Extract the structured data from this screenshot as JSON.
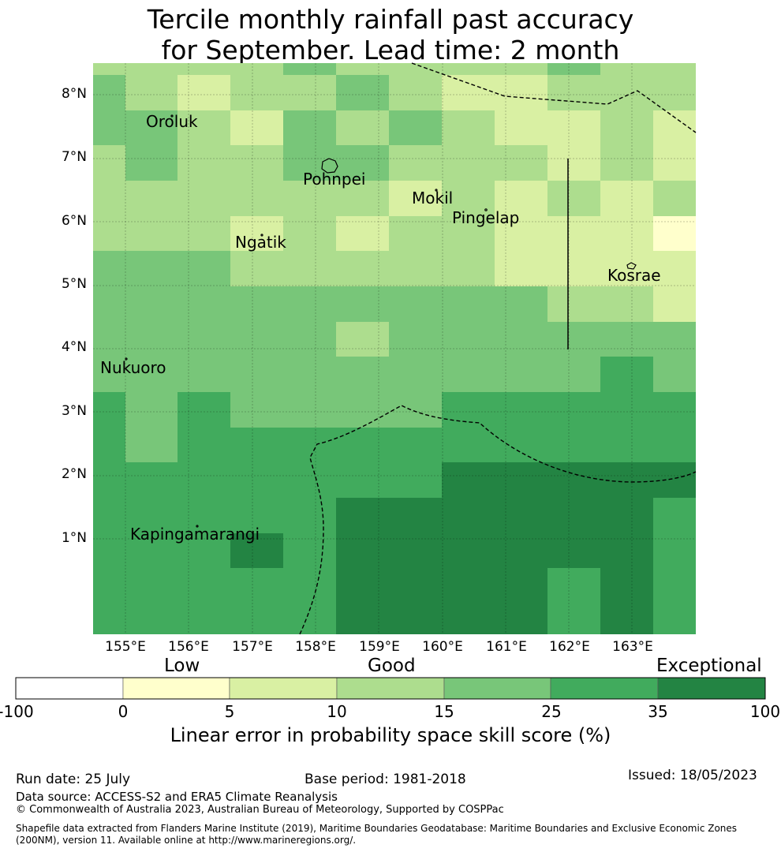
{
  "title": {
    "line1": "Tercile monthly rainfall past accuracy",
    "line2": "for September. Lead time: 2 month"
  },
  "map": {
    "lat_labels": [
      "8°N",
      "7°N",
      "6°N",
      "5°N",
      "4°N",
      "3°N",
      "2°N",
      "1°N"
    ],
    "lon_labels": [
      "155°E",
      "156°E",
      "157°E",
      "158°E",
      "159°E",
      "160°E",
      "161°E",
      "162°E",
      "163°E"
    ],
    "places": [
      "Oroluk",
      "Pohnpei",
      "Mokil",
      "Pingelap",
      "Ngatik",
      "Kosrae",
      "Nukuoro",
      "Kapingamarangi"
    ],
    "grid_colors": [
      "#ffffff",
      "#ffffcc",
      "#d9f0a3",
      "#addd8e",
      "#78c679",
      "#41ab5d",
      "#238443"
    ]
  },
  "legend": {
    "categories": [
      "Low",
      "Good",
      "Exceptional"
    ],
    "ticks": [
      "-100",
      "0",
      "5",
      "10",
      "15",
      "25",
      "35",
      "100"
    ],
    "title": "Linear error in probability space skill score (%)"
  },
  "footer": {
    "run_date": "Run date: 25 July",
    "base_period": "Base period: 1981-2018",
    "issued": "Issued: 18/05/2023",
    "data_source": "Data source: ACCESS-S2 and ERA5 Climate Reanalysis",
    "copyright": "© Commonwealth of Australia 2023, Australian Bureau of Meteorology, Supported by COSPPac",
    "shapefile1": "Shapefile data extracted from Flanders Marine Institute (2019), Maritime Boundaries Geodatabase: Maritime Boundaries and Exclusive Economic Zones",
    "shapefile2": "(200NM), version 11. Available online at http://www.marineregions.org/."
  }
}
